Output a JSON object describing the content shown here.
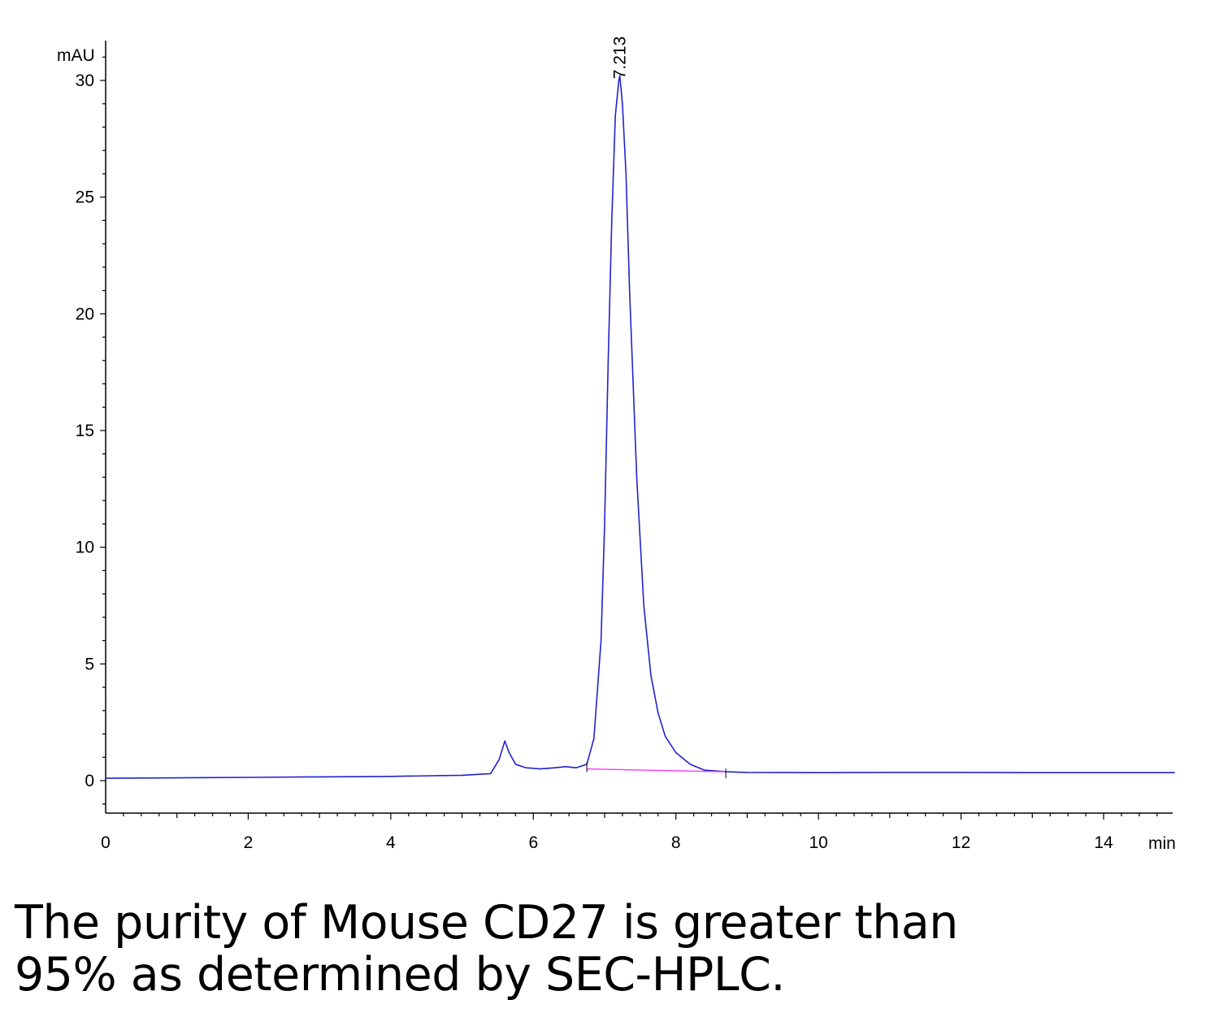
{
  "chart_data": {
    "type": "line",
    "title": "",
    "xlabel": "min",
    "ylabel": "mAU",
    "xlim": [
      0,
      15
    ],
    "ylim": [
      -1.4,
      31.7
    ],
    "x_ticks": [
      0,
      2,
      4,
      6,
      8,
      10,
      12,
      14
    ],
    "x_tick_labels": [
      "0",
      "2",
      "4",
      "6",
      "8",
      "10",
      "12",
      "14"
    ],
    "y_ticks": [
      0,
      5,
      10,
      15,
      20,
      25,
      30
    ],
    "y_tick_labels": [
      "0",
      "5",
      "10",
      "15",
      "20",
      "25",
      "30"
    ],
    "grid": false,
    "series": [
      {
        "color": "#2222cc",
        "x": [
          0,
          1,
          2,
          3,
          4,
          5,
          5.4,
          5.52,
          5.6,
          5.66,
          5.75,
          5.9,
          6.1,
          6.3,
          6.45,
          6.6,
          6.75,
          6.85,
          6.95,
          7.0,
          7.05,
          7.1,
          7.15,
          7.2,
          7.213,
          7.25,
          7.3,
          7.35,
          7.45,
          7.55,
          7.65,
          7.75,
          7.85,
          8.0,
          8.2,
          8.4,
          8.7,
          9,
          10,
          11,
          12,
          13,
          14,
          15
        ],
        "y": [
          0.1,
          0.12,
          0.14,
          0.16,
          0.18,
          0.23,
          0.3,
          0.9,
          1.7,
          1.2,
          0.7,
          0.55,
          0.5,
          0.55,
          0.6,
          0.55,
          0.7,
          1.8,
          6.0,
          11.0,
          18.0,
          24.0,
          28.5,
          30.0,
          30.2,
          29.0,
          26.0,
          21.0,
          13.0,
          7.5,
          4.5,
          2.9,
          1.9,
          1.2,
          0.7,
          0.45,
          0.38,
          0.35,
          0.34,
          0.35,
          0.35,
          0.34,
          0.34,
          0.34
        ]
      },
      {
        "color": "#ff33ff",
        "x": [
          6.75,
          8.7
        ],
        "y": [
          0.5,
          0.38
        ]
      }
    ],
    "annotations": [
      {
        "text": "7.213",
        "x": 7.213,
        "y": 30.2
      }
    ]
  },
  "caption": {
    "line1": "The purity of Mouse CD27 is greater than",
    "line2": "95% as determined by SEC-HPLC."
  }
}
